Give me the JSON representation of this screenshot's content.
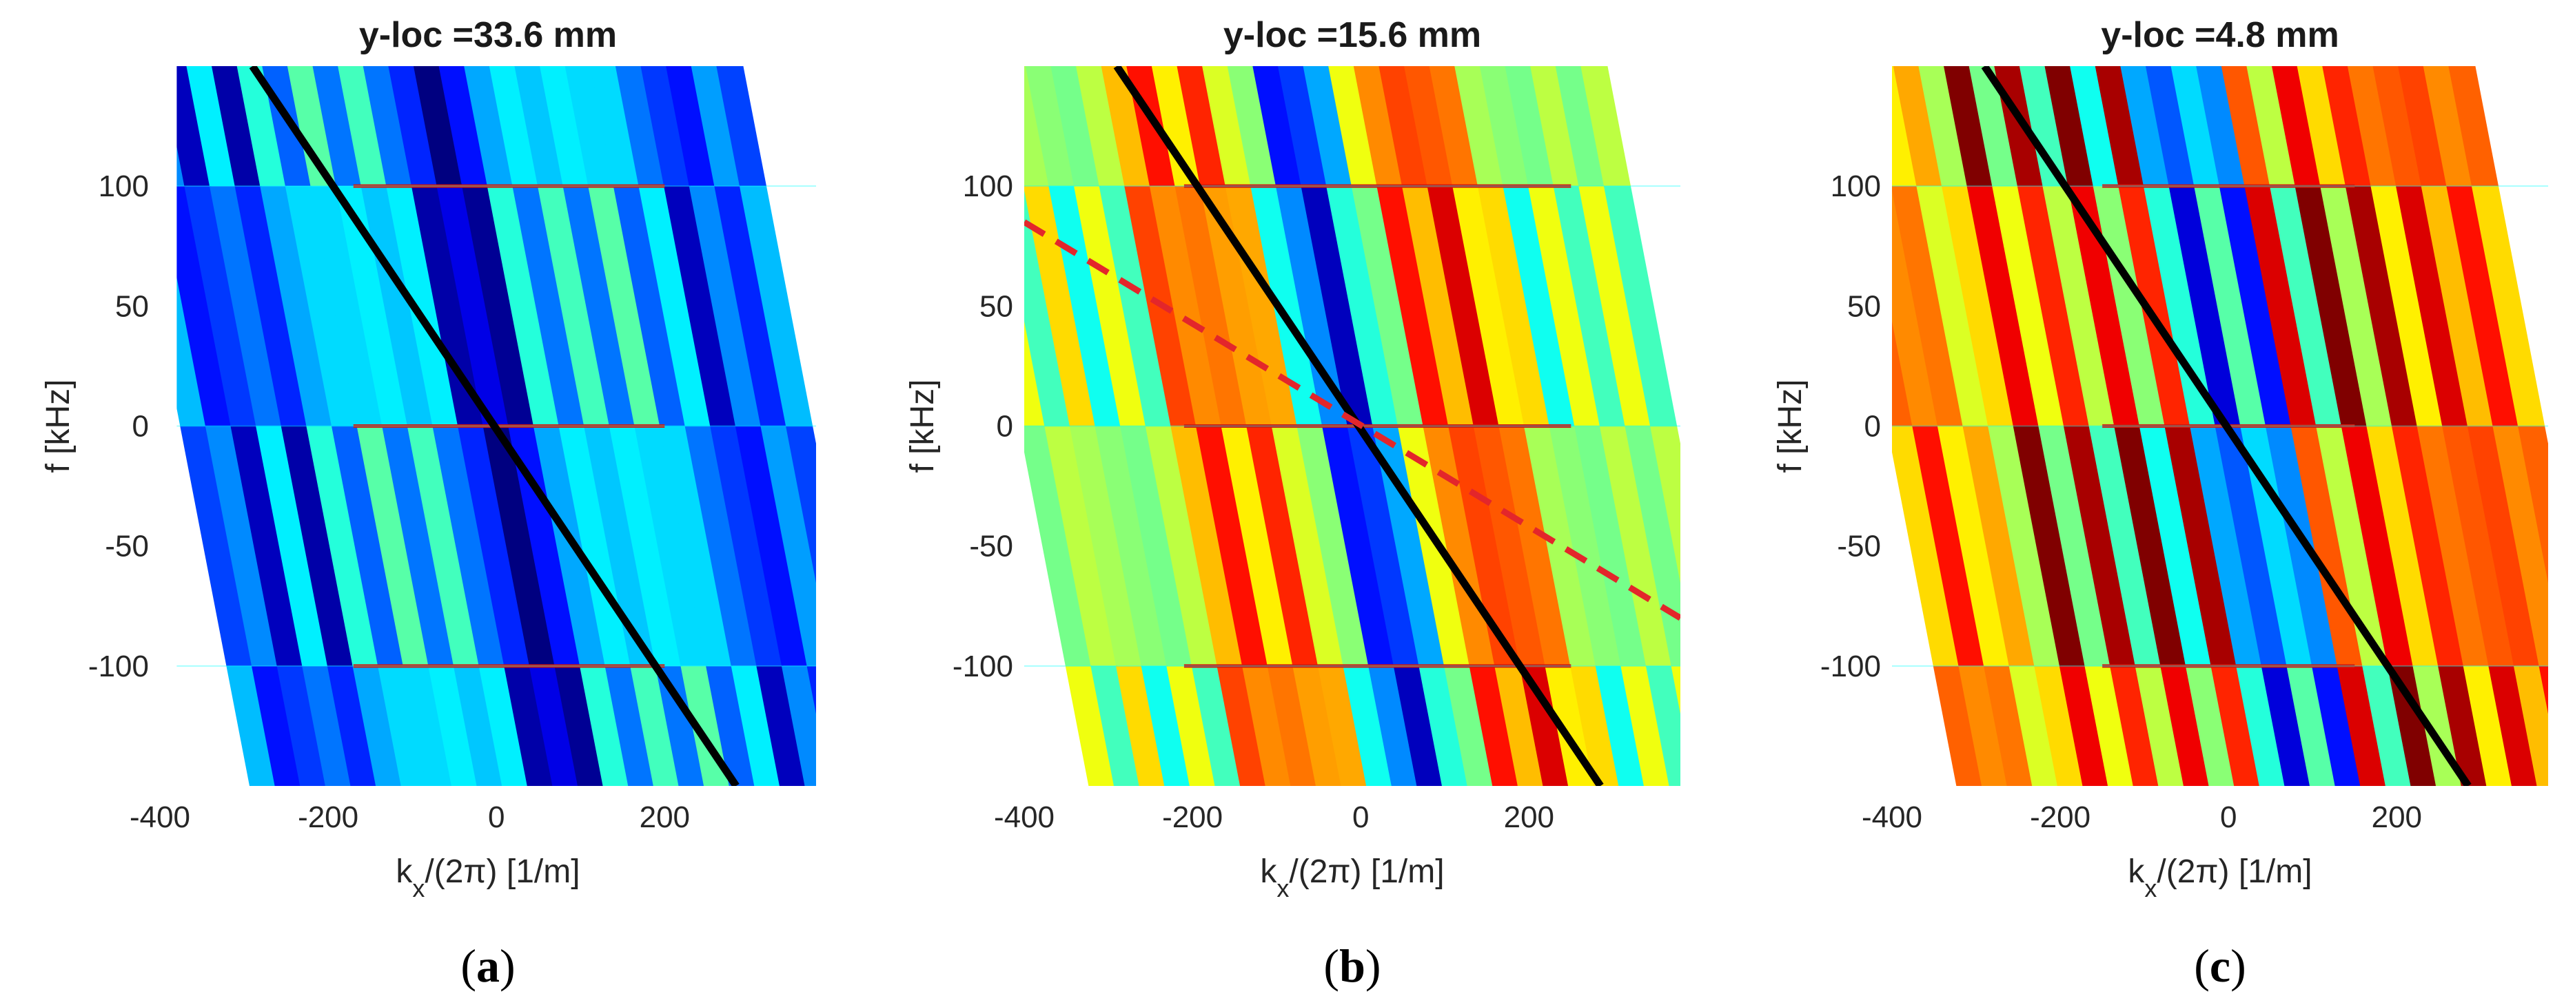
{
  "chart_data": [
    {
      "type": "heatmap",
      "title": "y-loc =33.6 mm",
      "panel_label": "a",
      "xlabel": "k_x/(2π) [1/m]",
      "ylabel": "f [kHz]",
      "xlim": [
        -400,
        380
      ],
      "ylim": [
        -150,
        150
      ],
      "xticks": [
        -400,
        -200,
        0,
        200
      ],
      "yticks": [
        100,
        50,
        0,
        -50,
        -100
      ],
      "data_extent_x": [
        -380,
        380
      ],
      "colormap": "jet",
      "stripe_centers_x": [
        -360,
        -330,
        -300,
        -270,
        -240,
        -210,
        -180,
        -150,
        -120,
        -90,
        -60,
        -30,
        0,
        30,
        60,
        90,
        120,
        150,
        180,
        210,
        240,
        270,
        300,
        330,
        360
      ],
      "stripe_slope_x_per_kHz": -0.55,
      "base_intensity": [
        0.25,
        0.2,
        0.12,
        0.3,
        0.1,
        0.35,
        0.28,
        0.4,
        0.3,
        0.38,
        0.3,
        0.1,
        0.04,
        0.08,
        0.35,
        0.3,
        0.38,
        0.3,
        0.4,
        0.28,
        0.3,
        0.12,
        0.2,
        0.22,
        0.25
      ],
      "harmonic_lines_kHz": [
        100,
        0,
        -100
      ],
      "harmonic_line_x_range": [
        -170,
        200
      ],
      "lines": [
        {
          "style": "solid",
          "color": "#000000",
          "x": [
            -290,
            285
          ],
          "y": [
            150,
            -150
          ]
        }
      ]
    },
    {
      "type": "heatmap",
      "title": "y-loc =15.6 mm",
      "panel_label": "b",
      "xlabel": "k_x/(2π) [1/m]",
      "ylabel": "f [kHz]",
      "xlim": [
        -400,
        380
      ],
      "ylim": [
        -150,
        150
      ],
      "xticks": [
        -400,
        -200,
        0,
        200
      ],
      "yticks": [
        100,
        50,
        0,
        -50,
        -100
      ],
      "data_extent_x": [
        -400,
        380
      ],
      "colormap": "jet",
      "stripe_centers_x": [
        -390,
        -360,
        -330,
        -300,
        -270,
        -240,
        -210,
        -180,
        -150,
        -120,
        -90,
        -60,
        -30,
        0,
        30,
        60,
        90,
        120,
        150,
        180,
        210,
        240,
        270,
        300,
        330,
        360
      ],
      "stripe_slope_x_per_kHz": -0.55,
      "base_intensity": [
        0.55,
        0.5,
        0.6,
        0.45,
        0.55,
        0.5,
        0.75,
        0.8,
        0.7,
        0.78,
        0.65,
        0.45,
        0.2,
        0.12,
        0.35,
        0.55,
        0.8,
        0.75,
        0.85,
        0.7,
        0.6,
        0.45,
        0.55,
        0.5,
        0.55,
        0.5
      ],
      "harmonic_lines_kHz": [
        100,
        0,
        -100
      ],
      "harmonic_line_x_range": [
        -210,
        250
      ],
      "lines": [
        {
          "style": "solid",
          "color": "#000000",
          "x": [
            -290,
            285
          ],
          "y": [
            150,
            -150
          ]
        },
        {
          "style": "dashed",
          "color": "#e3262b",
          "x": [
            -400,
            380
          ],
          "y": [
            85,
            -80
          ]
        }
      ]
    },
    {
      "type": "heatmap",
      "title": "y-loc =4.8 mm",
      "panel_label": "c",
      "xlabel": "k_x/(2π) [1/m]",
      "ylabel": "f [kHz]",
      "xlim": [
        -400,
        380
      ],
      "ylim": [
        -150,
        150
      ],
      "xticks": [
        -400,
        -200,
        0,
        200
      ],
      "yticks": [
        100,
        50,
        0,
        -50,
        -100
      ],
      "data_extent_x": [
        -400,
        380
      ],
      "colormap": "jet",
      "stripe_centers_x": [
        -390,
        -360,
        -330,
        -300,
        -270,
        -240,
        -210,
        -180,
        -150,
        -120,
        -90,
        -60,
        -30,
        0,
        30,
        60,
        90,
        120,
        150,
        180,
        210,
        240,
        270,
        300,
        330,
        360
      ],
      "stripe_slope_x_per_kHz": -0.55,
      "base_intensity": [
        0.72,
        0.8,
        0.7,
        0.65,
        0.6,
        0.95,
        0.55,
        0.9,
        0.5,
        0.95,
        0.45,
        0.9,
        0.35,
        0.15,
        0.4,
        0.2,
        0.85,
        0.5,
        0.95,
        0.6,
        0.9,
        0.7,
        0.85,
        0.75,
        0.8,
        0.72
      ],
      "harmonic_lines_kHz": [
        100,
        0,
        -100
      ],
      "harmonic_line_x_range": [
        -150,
        150
      ],
      "lines": [
        {
          "style": "solid",
          "color": "#000000",
          "x": [
            -290,
            285
          ],
          "y": [
            150,
            -150
          ]
        }
      ]
    }
  ]
}
